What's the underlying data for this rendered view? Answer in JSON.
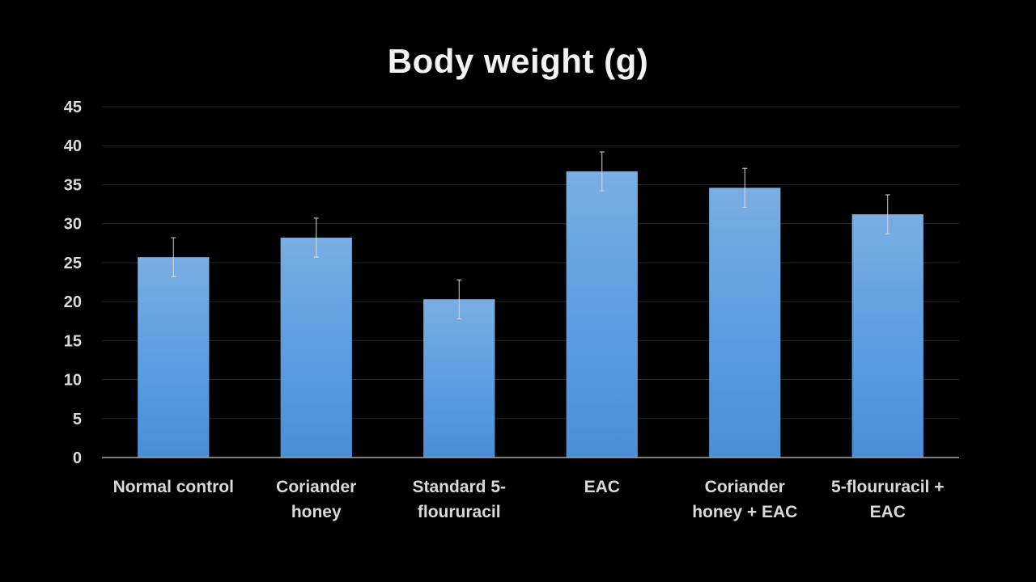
{
  "chart_data": {
    "type": "bar",
    "title": "Body weight (g)",
    "xlabel": "",
    "ylabel": "",
    "categories": [
      [
        "Normal control"
      ],
      [
        "Coriander",
        "honey"
      ],
      [
        "Standard 5-",
        "floururacil"
      ],
      [
        "EAC"
      ],
      [
        "Coriander",
        "honey + EAC"
      ],
      [
        "5-floururacil +",
        "EAC"
      ]
    ],
    "values": [
      25.7,
      28.2,
      20.3,
      36.7,
      34.6,
      31.2
    ],
    "error": [
      2.5,
      2.5,
      2.5,
      2.5,
      2.5,
      2.5
    ],
    "ylim": [
      0,
      45
    ],
    "yticks": [
      0,
      5,
      10,
      15,
      20,
      25,
      30,
      35,
      40,
      45
    ],
    "grid": true,
    "legend": "none",
    "colors": {
      "background": "#000000",
      "bar_top": "#7aaee3",
      "bar_bottom": "#4a8fd6",
      "grid": "#262626",
      "axis": "#a6a6a6",
      "text": "#d9d9d9",
      "title": "#f2f2f2",
      "error_bar": "#d9d9d9"
    }
  }
}
